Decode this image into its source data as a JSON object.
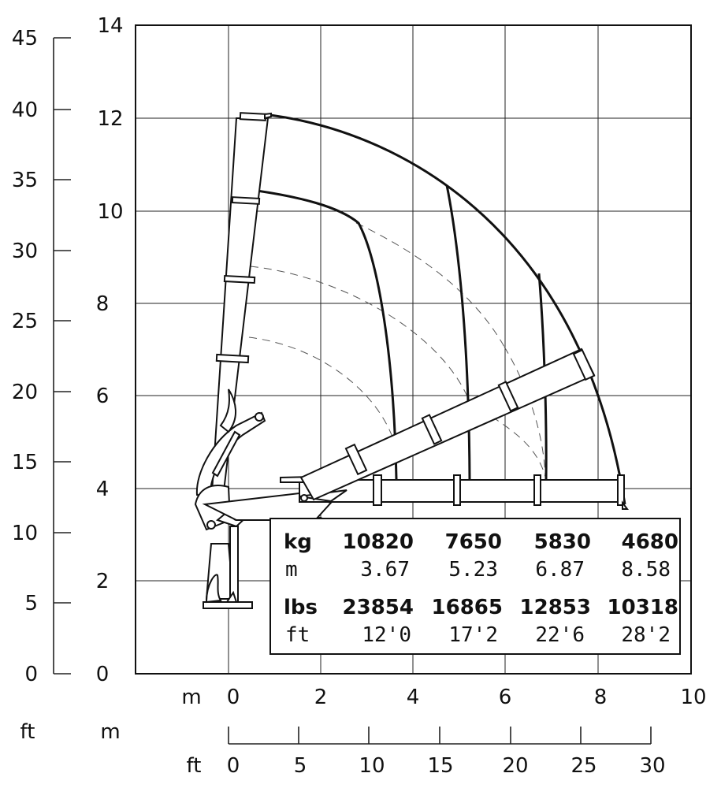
{
  "units": {
    "m_left": "m",
    "ft_left": "ft",
    "m_bottom": "m",
    "ft_bottom": "ft",
    "ft_scale_label_m": "m"
  },
  "y_m_ticks": [
    "0",
    "2",
    "4",
    "6",
    "8",
    "10",
    "12",
    "14"
  ],
  "y_ft_ticks": [
    "0",
    "5",
    "10",
    "15",
    "20",
    "25",
    "30",
    "35",
    "40",
    "45"
  ],
  "x_m_ticks": [
    "0",
    "2",
    "4",
    "6",
    "8",
    "10"
  ],
  "x_ft_ticks": [
    "0",
    "5",
    "10",
    "15",
    "20",
    "25",
    "30"
  ],
  "load_table": {
    "kg_label": "kg",
    "kg_values": [
      "10820",
      "7650",
      "5830",
      "4680"
    ],
    "m_label": "m",
    "m_values": [
      "3.67",
      "5.23",
      "6.87",
      "8.58"
    ],
    "lbs_label": "lbs",
    "lbs_values": [
      "23854",
      "16865",
      "12853",
      "10318"
    ],
    "ft_label": "ft",
    "ft_values": [
      "12'0",
      "17'2",
      "22'6",
      "28'2"
    ]
  },
  "chart_data": {
    "type": "diagram",
    "description_kind": "crane load chart",
    "x_axis_m": {
      "min": -2,
      "max": 10
    },
    "y_axis_m": {
      "min": 0,
      "max": 14
    },
    "capacities": [
      {
        "kg": 10820,
        "reach_m": 3.67,
        "lbs": 23854,
        "reach_ft": "12'0"
      },
      {
        "kg": 7650,
        "reach_m": 5.23,
        "lbs": 16865,
        "reach_ft": "17'2"
      },
      {
        "kg": 5830,
        "reach_m": 6.87,
        "lbs": 12853,
        "reach_ft": "22'6"
      },
      {
        "kg": 4680,
        "reach_m": 8.58,
        "lbs": 10318,
        "reach_ft": "28'2"
      }
    ]
  }
}
